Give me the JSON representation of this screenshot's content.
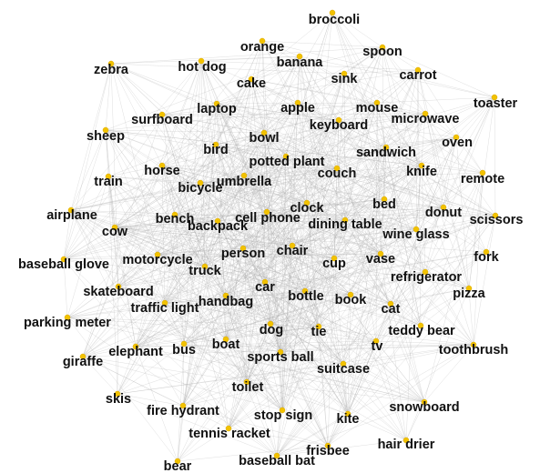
{
  "graph": {
    "node_color": "#f2c200",
    "edge_color": "#a9a9a9",
    "label_color": "#111111",
    "nodes": [
      "broccoli",
      "orange",
      "spoon",
      "zebra",
      "hot dog",
      "banana",
      "carrot",
      "cake",
      "sink",
      "toaster",
      "laptop",
      "apple",
      "mouse",
      "surfboard",
      "microwave",
      "keyboard",
      "sheep",
      "bowl",
      "oven",
      "bird",
      "potted plant",
      "sandwich",
      "horse",
      "couch",
      "knife",
      "remote",
      "train",
      "bicycle",
      "umbrella",
      "clock",
      "bed",
      "airplane",
      "cell phone",
      "donut",
      "scissors",
      "bench",
      "dining table",
      "cow",
      "backpack",
      "wine glass",
      "person",
      "chair",
      "fork",
      "motorcycle",
      "baseball glove",
      "cup",
      "vase",
      "truck",
      "refrigerator",
      "skateboard",
      "bottle",
      "car",
      "pizza",
      "traffic light",
      "handbag",
      "book",
      "cat",
      "parking meter",
      "dog",
      "tie",
      "teddy bear",
      "giraffe",
      "elephant",
      "bus",
      "boat",
      "tv",
      "toothbrush",
      "sports ball",
      "suitcase",
      "toilet",
      "skis",
      "fire hydrant",
      "stop sign",
      "kite",
      "snowboard",
      "tennis racket",
      "hair drier",
      "frisbee",
      "bear",
      "baseball bat"
    ]
  }
}
